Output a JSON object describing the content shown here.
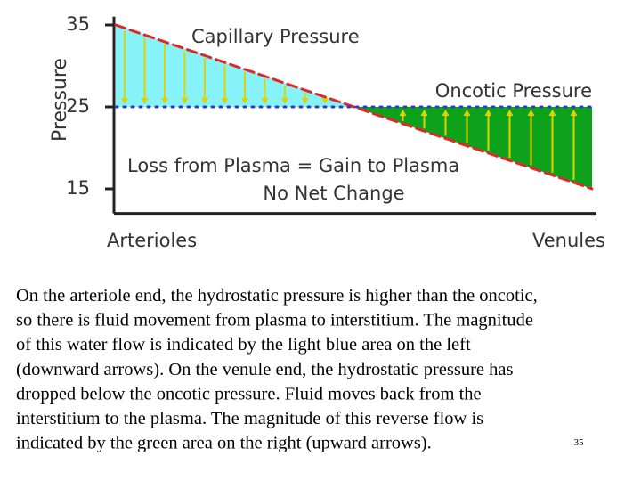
{
  "chart_data": {
    "type": "line",
    "y_label": "Pressure",
    "categories": [
      "Arterioles",
      "Venules"
    ],
    "series": [
      {
        "name": "Capillary Pressure",
        "color": "#e02828",
        "values": [
          35,
          15
        ]
      },
      {
        "name": "Oncotic Pressure",
        "color": "#2a3fc4",
        "values": [
          25,
          25
        ]
      }
    ],
    "annotations": [
      "Loss from Plasma = Gain to Plasma",
      "No Net Change"
    ],
    "ylim": [
      12,
      36
    ],
    "yticks": [
      15,
      25,
      35
    ]
  },
  "caption_lines": [
    "On the arteriole end, the hydrostatic pressure is higher than the oncotic,",
    "so there is fluid movement from plasma to interstitium.  The magnitude",
    "of this water flow is indicated by the light blue area on the left",
    "(downward arrows). On the venule end, the hydrostatic pressure has",
    "dropped below the oncotic  pressure.  Fluid moves back from the",
    "interstitium to the plasma. The magnitude of this reverse flow is",
    "indicated by the green area on the right (upward arrows)."
  ],
  "slide_number": "35"
}
